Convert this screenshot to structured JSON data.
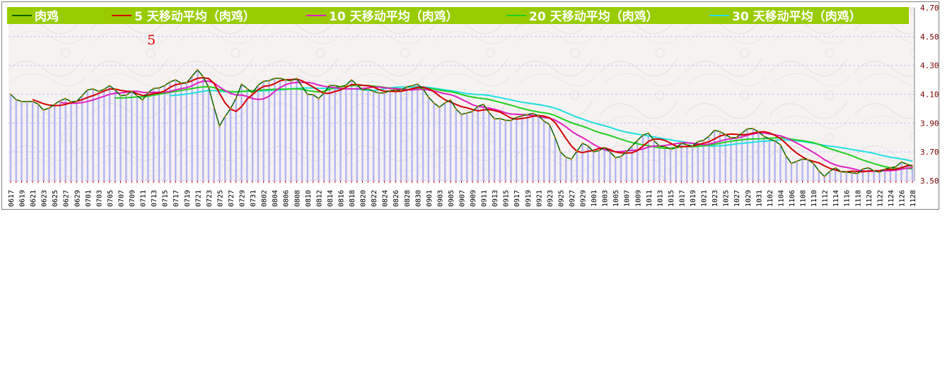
{
  "chart_data": {
    "type": "line",
    "legend": [
      {
        "name": "肉鸡",
        "color": "#006400"
      },
      {
        "name": "5 天移动平均（肉鸡）",
        "color": "#d40000"
      },
      {
        "name": "10 天移动平均（肉鸡）",
        "color": "#e020c0"
      },
      {
        "name": "20 天移动平均（肉鸡）",
        "color": "#20d020"
      },
      {
        "name": "30 天移动平均（肉鸡）",
        "color": "#20e0e0"
      }
    ],
    "legend_placement": "top",
    "marker_label": "5",
    "ylim": [
      3.5,
      4.7
    ],
    "y_ticks": [
      "4.70",
      "4.50",
      "4.30",
      "4.10",
      "3.90",
      "3.70",
      "3.50"
    ],
    "grid": true,
    "x_ticks": [
      "0617",
      "0619",
      "0621",
      "0623",
      "0625",
      "0627",
      "0629",
      "0701",
      "0703",
      "0705",
      "0707",
      "0709",
      "0711",
      "0713",
      "0715",
      "0717",
      "0719",
      "0721",
      "0723",
      "0725",
      "0727",
      "0729",
      "0731",
      "0802",
      "0804",
      "0806",
      "0808",
      "0810",
      "0812",
      "0814",
      "0816",
      "0818",
      "0820",
      "0822",
      "0824",
      "0826",
      "0828",
      "0830",
      "0901",
      "0903",
      "0905",
      "0907",
      "0909",
      "0911",
      "0913",
      "0915",
      "0917",
      "0919",
      "0921",
      "0923",
      "0925",
      "0927",
      "0929",
      "1001",
      "1003",
      "1005",
      "1007",
      "1009",
      "1011",
      "1013",
      "1015",
      "1017",
      "1019",
      "1021",
      "1023",
      "1025",
      "1027",
      "1029",
      "1031",
      "1102",
      "1104",
      "1106",
      "1108",
      "1110",
      "1112",
      "1114",
      "1116",
      "1118",
      "1120",
      "1122",
      "1124",
      "1126",
      "1128"
    ],
    "price_anchors": [
      [
        "0617",
        4.1
      ],
      [
        "0619",
        4.05
      ],
      [
        "0621",
        4.05
      ],
      [
        "0623",
        3.99
      ],
      [
        "0625",
        4.03
      ],
      [
        "0627",
        4.07
      ],
      [
        "0629",
        4.05
      ],
      [
        "0701",
        4.13
      ],
      [
        "0703",
        4.12
      ],
      [
        "0705",
        4.16
      ],
      [
        "0707",
        4.09
      ],
      [
        "0709",
        4.12
      ],
      [
        "0711",
        4.06
      ],
      [
        "0713",
        4.14
      ],
      [
        "0715",
        4.16
      ],
      [
        "0717",
        4.2
      ],
      [
        "0719",
        4.18
      ],
      [
        "0721",
        4.27
      ],
      [
        "0723",
        4.15
      ],
      [
        "0725",
        3.88
      ],
      [
        "0727",
        4.0
      ],
      [
        "0729",
        4.17
      ],
      [
        "0731",
        4.11
      ],
      [
        "0802",
        4.19
      ],
      [
        "0804",
        4.21
      ],
      [
        "0806",
        4.2
      ],
      [
        "0808",
        4.21
      ],
      [
        "0810",
        4.1
      ],
      [
        "0812",
        4.07
      ],
      [
        "0814",
        4.16
      ],
      [
        "0816",
        4.15
      ],
      [
        "0818",
        4.2
      ],
      [
        "0820",
        4.13
      ],
      [
        "0822",
        4.12
      ],
      [
        "0824",
        4.11
      ],
      [
        "0826",
        4.13
      ],
      [
        "0828",
        4.15
      ],
      [
        "0830",
        4.17
      ],
      [
        "0901",
        4.08
      ],
      [
        "0903",
        4.01
      ],
      [
        "0905",
        4.06
      ],
      [
        "0907",
        3.96
      ],
      [
        "0909",
        3.98
      ],
      [
        "0911",
        4.03
      ],
      [
        "0913",
        3.93
      ],
      [
        "0915",
        3.92
      ],
      [
        "0917",
        3.94
      ],
      [
        "0919",
        3.96
      ],
      [
        "0921",
        3.95
      ],
      [
        "0923",
        3.89
      ],
      [
        "0925",
        3.7
      ],
      [
        "0927",
        3.65
      ],
      [
        "0929",
        3.76
      ],
      [
        "1001",
        3.7
      ],
      [
        "1003",
        3.73
      ],
      [
        "1005",
        3.66
      ],
      [
        "1007",
        3.7
      ],
      [
        "1009",
        3.78
      ],
      [
        "1011",
        3.83
      ],
      [
        "1013",
        3.74
      ],
      [
        "1015",
        3.72
      ],
      [
        "1017",
        3.76
      ],
      [
        "1019",
        3.74
      ],
      [
        "1021",
        3.78
      ],
      [
        "1023",
        3.85
      ],
      [
        "1025",
        3.82
      ],
      [
        "1027",
        3.8
      ],
      [
        "1029",
        3.86
      ],
      [
        "1031",
        3.84
      ],
      [
        "1102",
        3.79
      ],
      [
        "1104",
        3.75
      ],
      [
        "1106",
        3.62
      ],
      [
        "1108",
        3.65
      ],
      [
        "1110",
        3.62
      ],
      [
        "1112",
        3.53
      ],
      [
        "1114",
        3.59
      ],
      [
        "1116",
        3.56
      ],
      [
        "1118",
        3.55
      ],
      [
        "1120",
        3.59
      ],
      [
        "1122",
        3.56
      ],
      [
        "1124",
        3.59
      ],
      [
        "1126",
        3.63
      ],
      [
        "1128",
        3.6
      ]
    ],
    "moving_average_windows": [
      5,
      10,
      20,
      30
    ]
  }
}
